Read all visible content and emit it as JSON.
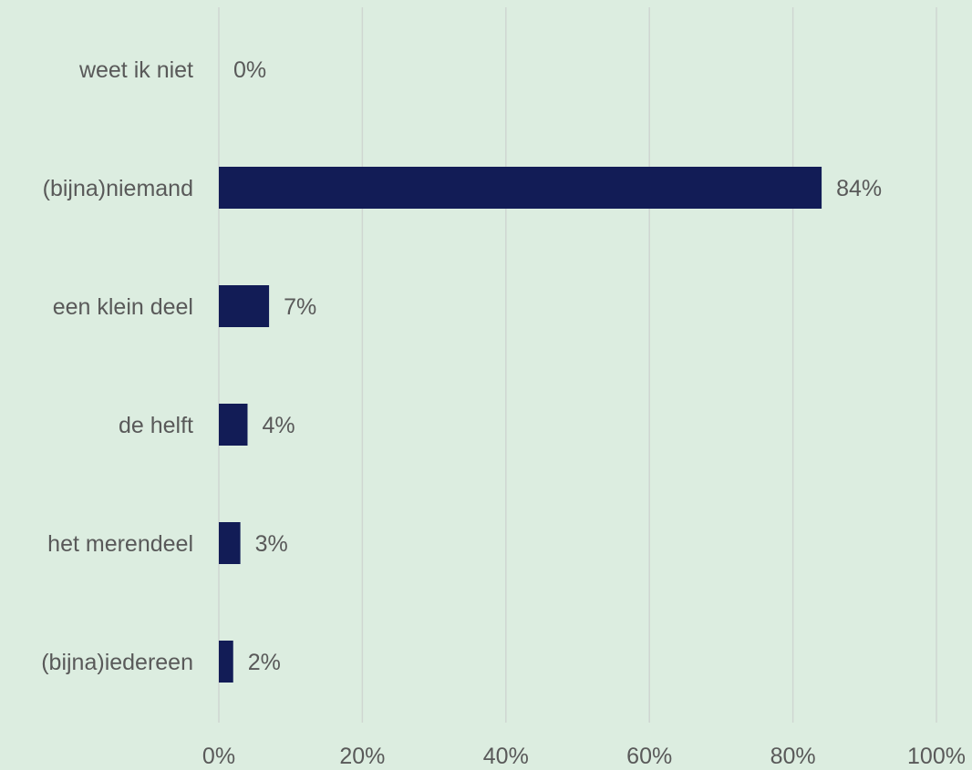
{
  "chart_data": {
    "type": "bar",
    "orientation": "horizontal",
    "categories": [
      "weet ik niet",
      "(bijna)niemand",
      "een klein deel",
      "de helft",
      "het merendeel",
      "(bijna)iedereen"
    ],
    "values": [
      0,
      84,
      7,
      4,
      3,
      2
    ],
    "data_labels": [
      "0%",
      "84%",
      "7%",
      "4%",
      "3%",
      "2%"
    ],
    "x_ticks": [
      0,
      20,
      40,
      60,
      80,
      100
    ],
    "x_tick_labels": [
      "0%",
      "20%",
      "40%",
      "60%",
      "80%",
      "100%"
    ],
    "xlim": [
      0,
      100
    ],
    "grid": "vertical",
    "legend": "none",
    "title": "",
    "xlabel": "",
    "ylabel": ""
  },
  "colors": {
    "background": "#dcede0",
    "bar": "#121c56",
    "grid": "#cfd6d1",
    "text": "#595959"
  }
}
